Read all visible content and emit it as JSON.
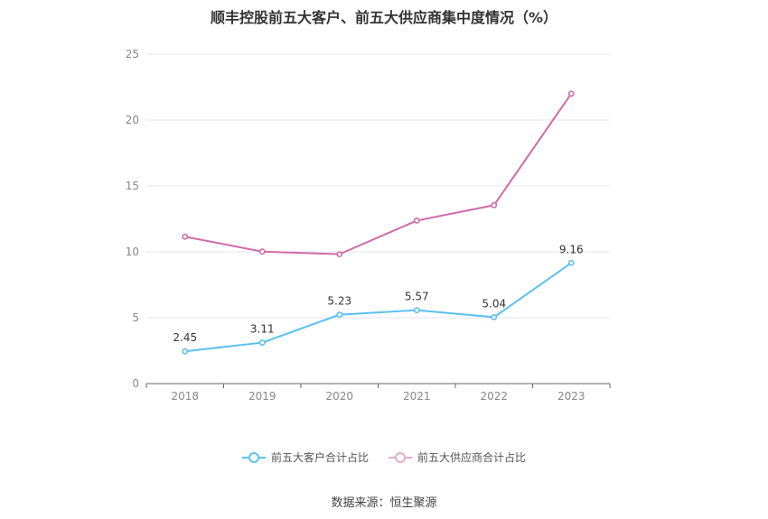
{
  "chart_data": {
    "type": "line",
    "title": "顺丰控股前五大客户、前五大供应商集中度情况（%）",
    "categories": [
      "2018",
      "2019",
      "2020",
      "2021",
      "2022",
      "2023"
    ],
    "ylim": [
      0,
      25
    ],
    "yticks": [
      0,
      5,
      10,
      15,
      20,
      25
    ],
    "grid": true,
    "legend_position": "bottom",
    "series": [
      {
        "name": "前五大客户合计占比",
        "color": "#5bc0f0",
        "values": [
          2.45,
          3.11,
          5.23,
          5.57,
          5.04,
          9.16
        ],
        "show_labels": true
      },
      {
        "name": "前五大供应商合计占比",
        "color": "#d06aaa",
        "values": [
          11.15,
          10.02,
          9.82,
          12.37,
          13.54,
          22.0
        ],
        "show_labels": false
      }
    ]
  },
  "source": "数据来源：恒生聚源"
}
